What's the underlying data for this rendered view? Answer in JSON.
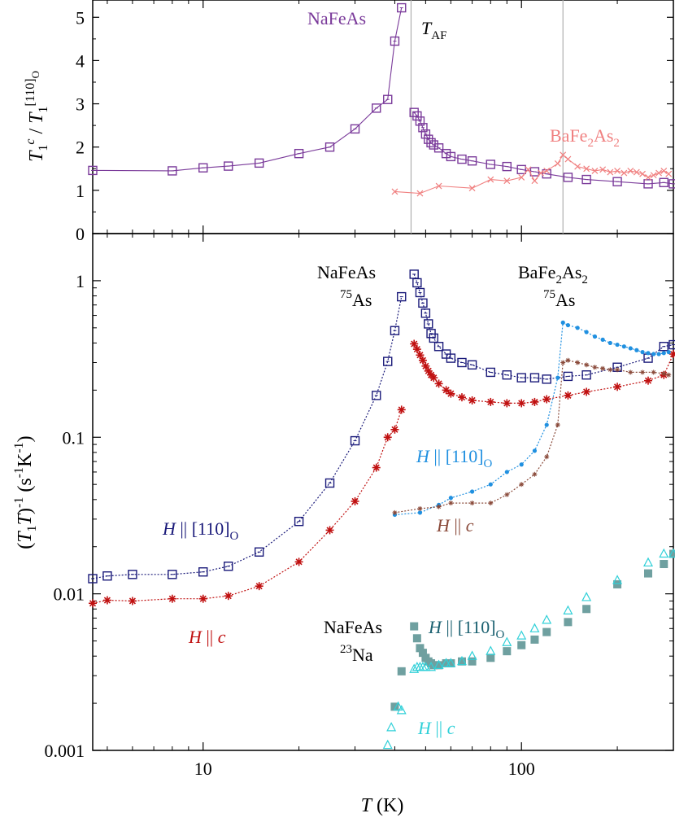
{
  "colors": {
    "nafeas_top": "#7a3a9a",
    "bafe2as2_top": "#f08080",
    "nafeas_110": "#1a1a7a",
    "nafeas_c": "#c01010",
    "bafe2as2_110": "#2090e0",
    "bafe2as2_c": "#8a4a3a",
    "na23_110": "#6fa0a0",
    "na23_c": "#30d0d8",
    "vline": "#b0b0b0"
  },
  "chart_data": [
    {
      "type": "line",
      "panel": "top",
      "xscale": "log",
      "xlim": [
        4.5,
        300
      ],
      "ylim": [
        0,
        5.4
      ],
      "ylabel": "T1^c / T1^[110]O",
      "yticks": [
        "0",
        "1",
        "2",
        "3",
        "4",
        "5"
      ],
      "grid": false,
      "vertical_markers": [
        {
          "label": "T_AF",
          "x": 45
        },
        {
          "x": 135
        }
      ],
      "series": [
        {
          "name": "NaFeAs",
          "marker": "open-square",
          "x": [
            4.5,
            8,
            10,
            12,
            15,
            20,
            25,
            30,
            35,
            38,
            40,
            42,
            46,
            47,
            48,
            49,
            50,
            51,
            52,
            53,
            55,
            58,
            60,
            65,
            70,
            80,
            90,
            100,
            110,
            120,
            140,
            160,
            200,
            250,
            280,
            300
          ],
          "y": [
            1.46,
            1.45,
            1.52,
            1.56,
            1.63,
            1.85,
            2.0,
            2.42,
            2.9,
            3.1,
            4.45,
            5.22,
            2.8,
            2.72,
            2.6,
            2.45,
            2.3,
            2.18,
            2.1,
            2.05,
            1.98,
            1.85,
            1.78,
            1.72,
            1.68,
            1.6,
            1.55,
            1.48,
            1.43,
            1.38,
            1.3,
            1.25,
            1.2,
            1.15,
            1.18,
            1.15
          ]
        },
        {
          "name": "BaFe2As2",
          "marker": "x",
          "x": [
            40,
            48,
            55,
            70,
            80,
            90,
            100,
            105,
            110,
            115,
            120,
            130,
            135,
            140,
            150,
            160,
            170,
            180,
            190,
            200,
            210,
            220,
            230,
            240,
            250,
            260,
            270,
            280,
            290
          ],
          "y": [
            0.97,
            0.93,
            1.1,
            1.05,
            1.25,
            1.22,
            1.3,
            1.48,
            1.22,
            1.4,
            1.45,
            1.62,
            1.82,
            1.72,
            1.55,
            1.5,
            1.45,
            1.48,
            1.42,
            1.45,
            1.4,
            1.45,
            1.42,
            1.38,
            1.3,
            1.35,
            1.4,
            1.45,
            1.38
          ]
        }
      ],
      "annotations": [
        "NaFeAs",
        "BaFe2As2",
        "TAF"
      ]
    },
    {
      "type": "line",
      "panel": "bottom",
      "xscale": "log",
      "yscale": "log",
      "xlim": [
        4.5,
        300
      ],
      "ylim": [
        0.001,
        2.0
      ],
      "xlabel": "T (K)",
      "ylabel": "(T1T)^-1 (s^-1K^-1)",
      "xticks": [
        "10",
        "100"
      ],
      "yticks": [
        "0.001",
        "0.01",
        "0.1",
        "1"
      ],
      "grid": false,
      "series": [
        {
          "name": "NaFeAs 75As H || [110]O",
          "marker": "open-square",
          "line": "dotted",
          "x": [
            4.5,
            5,
            6,
            8,
            10,
            12,
            15,
            20,
            25,
            30,
            35,
            38,
            40,
            42,
            46,
            47,
            48,
            49,
            50,
            51,
            52,
            53,
            55,
            58,
            60,
            65,
            70,
            80,
            90,
            100,
            110,
            120,
            140,
            160,
            200,
            250,
            280,
            300
          ],
          "y": [
            0.0125,
            0.013,
            0.0133,
            0.0133,
            0.0138,
            0.015,
            0.0185,
            0.029,
            0.051,
            0.095,
            0.185,
            0.305,
            0.48,
            0.79,
            1.1,
            0.97,
            0.84,
            0.72,
            0.62,
            0.53,
            0.46,
            0.43,
            0.38,
            0.34,
            0.32,
            0.3,
            0.29,
            0.26,
            0.25,
            0.24,
            0.24,
            0.235,
            0.245,
            0.25,
            0.28,
            0.32,
            0.38,
            0.39
          ]
        },
        {
          "name": "NaFeAs 75As H || c",
          "marker": "asterisk",
          "line": "dotted",
          "x": [
            4.5,
            5,
            6,
            8,
            10,
            12,
            15,
            20,
            25,
            30,
            35,
            38,
            40,
            42,
            46,
            47,
            48,
            49,
            50,
            51,
            52,
            53,
            55,
            58,
            60,
            65,
            70,
            80,
            90,
            100,
            110,
            120,
            140,
            160,
            200,
            250,
            280,
            300
          ],
          "y": [
            0.0087,
            0.0091,
            0.009,
            0.0093,
            0.0093,
            0.0097,
            0.0112,
            0.016,
            0.0255,
            0.039,
            0.064,
            0.1,
            0.112,
            0.15,
            0.395,
            0.365,
            0.335,
            0.31,
            0.285,
            0.265,
            0.25,
            0.24,
            0.22,
            0.2,
            0.19,
            0.18,
            0.172,
            0.168,
            0.165,
            0.165,
            0.168,
            0.175,
            0.185,
            0.195,
            0.21,
            0.23,
            0.25,
            0.34
          ]
        },
        {
          "name": "BaFe2As2 75As H || [110]O",
          "marker": "dot",
          "line": "dotted",
          "x": [
            40,
            48,
            55,
            60,
            70,
            80,
            90,
            100,
            110,
            120,
            130,
            135,
            140,
            150,
            160,
            170,
            180,
            190,
            200,
            210,
            220,
            230,
            240,
            250,
            260,
            270,
            280,
            290
          ],
          "y": [
            0.032,
            0.033,
            0.037,
            0.041,
            0.045,
            0.05,
            0.06,
            0.067,
            0.082,
            0.12,
            0.24,
            0.54,
            0.52,
            0.5,
            0.47,
            0.44,
            0.42,
            0.4,
            0.39,
            0.38,
            0.37,
            0.36,
            0.35,
            0.345,
            0.34,
            0.34,
            0.345,
            0.35
          ]
        },
        {
          "name": "BaFe2As2 75As H || c",
          "marker": "small-asterisk",
          "line": "dotted",
          "x": [
            40,
            48,
            55,
            60,
            70,
            80,
            90,
            100,
            110,
            120,
            130,
            135,
            140,
            150,
            160,
            170,
            180,
            190,
            200,
            220,
            240,
            260,
            280,
            290
          ],
          "y": [
            0.033,
            0.035,
            0.036,
            0.038,
            0.038,
            0.038,
            0.043,
            0.05,
            0.058,
            0.075,
            0.12,
            0.3,
            0.31,
            0.3,
            0.29,
            0.28,
            0.275,
            0.27,
            0.27,
            0.26,
            0.26,
            0.26,
            0.255,
            0.25
          ]
        },
        {
          "name": "NaFeAs 23Na H || [110]O",
          "marker": "filled-square",
          "line": "none",
          "x": [
            40,
            42,
            46,
            47,
            48,
            49,
            50,
            51,
            52,
            53,
            55,
            58,
            60,
            65,
            70,
            80,
            90,
            100,
            110,
            120,
            140,
            160,
            200,
            250,
            280,
            300
          ],
          "y": [
            0.0019,
            0.0032,
            0.0062,
            0.0052,
            0.0045,
            0.0042,
            0.0039,
            0.0037,
            0.0036,
            0.0035,
            0.0035,
            0.0036,
            0.0036,
            0.0037,
            0.0037,
            0.0039,
            0.0043,
            0.0047,
            0.0051,
            0.0057,
            0.0066,
            0.008,
            0.0115,
            0.0135,
            0.0155,
            0.018
          ]
        },
        {
          "name": "NaFeAs 23Na H || c",
          "marker": "open-triangle",
          "line": "none",
          "x": [
            38,
            39,
            41,
            42,
            46,
            47,
            48,
            49,
            50,
            52,
            55,
            58,
            60,
            65,
            70,
            80,
            90,
            100,
            110,
            120,
            140,
            160,
            200,
            250,
            280,
            300
          ],
          "y": [
            0.00108,
            0.0014,
            0.0019,
            0.0018,
            0.0033,
            0.0034,
            0.0034,
            0.0034,
            0.0034,
            0.0034,
            0.0035,
            0.0036,
            0.0036,
            0.0037,
            0.004,
            0.0043,
            0.0049,
            0.0054,
            0.006,
            0.0068,
            0.0078,
            0.0095,
            0.0122,
            0.0158,
            0.018,
            0.018
          ]
        }
      ],
      "annotations": [
        "NaFeAs",
        "75As",
        "BaFe2As2",
        "75As",
        "H || [110]O",
        "H || c",
        "H || [110]O",
        "H || c",
        "NaFeAs",
        "23Na",
        "H || [110]O",
        "H || c"
      ]
    }
  ],
  "labels": {
    "top_ylabel_T1": "T",
    "top_ylabel_sub1": "1",
    "top_ylabel_supc": "c",
    "top_ylabel_slash": " / ",
    "top_ylabel_T2": "T",
    "top_ylabel_sub2": "1",
    "top_ylabel_sup110": "[110]",
    "top_ylabel_subO": "O",
    "top_nafeas": "NaFeAs",
    "top_taf_T": "T",
    "top_taf_sub": "AF",
    "top_ba_main": "BaFe",
    "top_ba_sub": "2",
    "top_ba_as": "As",
    "top_ba_sub2": "2",
    "b_nafeas": "NaFeAs",
    "b_75as_sup": "75",
    "b_75as": "As",
    "b_ba_main": "BaFe",
    "b_ba_sub": "2",
    "b_ba_as": "As",
    "b_ba_sub2": "2",
    "b_75as2_sup": "75",
    "b_75as2": "As",
    "h110_blue_H": "H",
    "h110_blue_par": " || [110]",
    "h110_blue_O": "O",
    "hc_blue_H": "H",
    "hc_blue_par": " || ",
    "hc_blue_c": "c",
    "h110_navy_H": "H",
    "h110_navy_par": " || [110]",
    "h110_navy_O": "O",
    "hc_red_H": "H",
    "hc_red_par": " || ",
    "hc_red_c": "c",
    "b_nafeas2": "NaFeAs",
    "b_23na_sup": "23",
    "b_23na": "Na",
    "h110_teal_H": "H",
    "h110_teal_par": " || [110]",
    "h110_teal_O": "O",
    "hc_cyan_H": "H",
    "hc_cyan_par": " || ",
    "hc_cyan_c": "c",
    "ylabel_open": "(",
    "ylabel_T": "T",
    "ylabel_1": "1",
    "ylabel_T2": "T",
    "ylabel_close": ")",
    "ylabel_m1": "-1",
    "ylabel_units_open": " (s",
    "ylabel_units_m1a": "-1",
    "ylabel_K": "K",
    "ylabel_units_m1b": "-1",
    "ylabel_units_close": ")",
    "xlabel_T": "T",
    "xlabel_unit": " (K)"
  }
}
